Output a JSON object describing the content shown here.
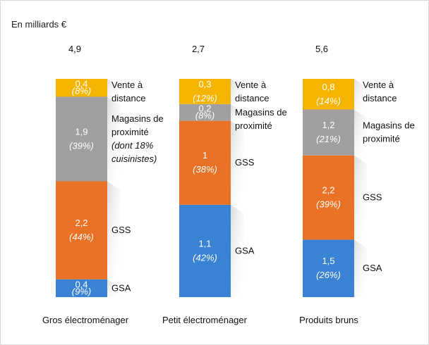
{
  "chart_data": {
    "type": "bar",
    "stacked": true,
    "unit_label": "En milliards €",
    "categories": [
      "Gros électroménager",
      "Petit électroménager",
      "Produits bruns"
    ],
    "totals": [
      "4,9",
      "2,7",
      "5,6"
    ],
    "series": [
      {
        "name": "GSA",
        "color": "#3a82d4",
        "values": [
          0.4,
          1.1,
          1.5
        ],
        "value_labels": [
          "0,4",
          "1,1",
          "1,5"
        ],
        "pct_labels": [
          "(9%)",
          "(42%)",
          "(26%)"
        ],
        "side_labels": [
          [
            "GSA"
          ],
          [
            "GSA"
          ],
          [
            "GSA"
          ]
        ],
        "side_italic": [
          [
            false
          ],
          [
            false
          ],
          [
            false
          ]
        ]
      },
      {
        "name": "GSS",
        "color": "#ea7226",
        "values": [
          2.2,
          1.0,
          2.2
        ],
        "value_labels": [
          "2,2",
          "1",
          "2,2"
        ],
        "pct_labels": [
          "(44%)",
          "(38%)",
          "(39%)"
        ],
        "side_labels": [
          [
            "GSS"
          ],
          [
            "GSS"
          ],
          [
            "GSS"
          ]
        ],
        "side_italic": [
          [
            false
          ],
          [
            false
          ],
          [
            false
          ]
        ]
      },
      {
        "name": "Magasins de proximité",
        "color": "#a0a0a0",
        "values": [
          1.9,
          0.2,
          1.2
        ],
        "value_labels": [
          "1,9",
          "0,2",
          "1,2"
        ],
        "pct_labels": [
          "(39%)",
          "(8%)",
          "(21%)"
        ],
        "side_labels": [
          [
            "Magasins de",
            "proximité",
            "(dont 18%",
            "cuisinistes)"
          ],
          [
            "Magasins de",
            "proximité"
          ],
          [
            "Magasins de",
            "proximité"
          ]
        ],
        "side_italic": [
          [
            false,
            false,
            true,
            true
          ],
          [
            false,
            false
          ],
          [
            false,
            false
          ]
        ]
      },
      {
        "name": "Vente à distance",
        "color": "#f5b400",
        "values": [
          0.4,
          0.3,
          0.8
        ],
        "value_labels": [
          "0,4",
          "0,3",
          "0,8"
        ],
        "pct_labels": [
          "(8%)",
          "(12%)",
          "(14%)"
        ],
        "side_labels": [
          [
            "Vente à",
            "distance"
          ],
          [
            "Vente à",
            "distance"
          ],
          [
            "Vente à",
            "distance"
          ]
        ],
        "side_italic": [
          [
            false,
            false
          ],
          [
            false,
            false
          ],
          [
            false,
            false
          ]
        ]
      }
    ]
  }
}
